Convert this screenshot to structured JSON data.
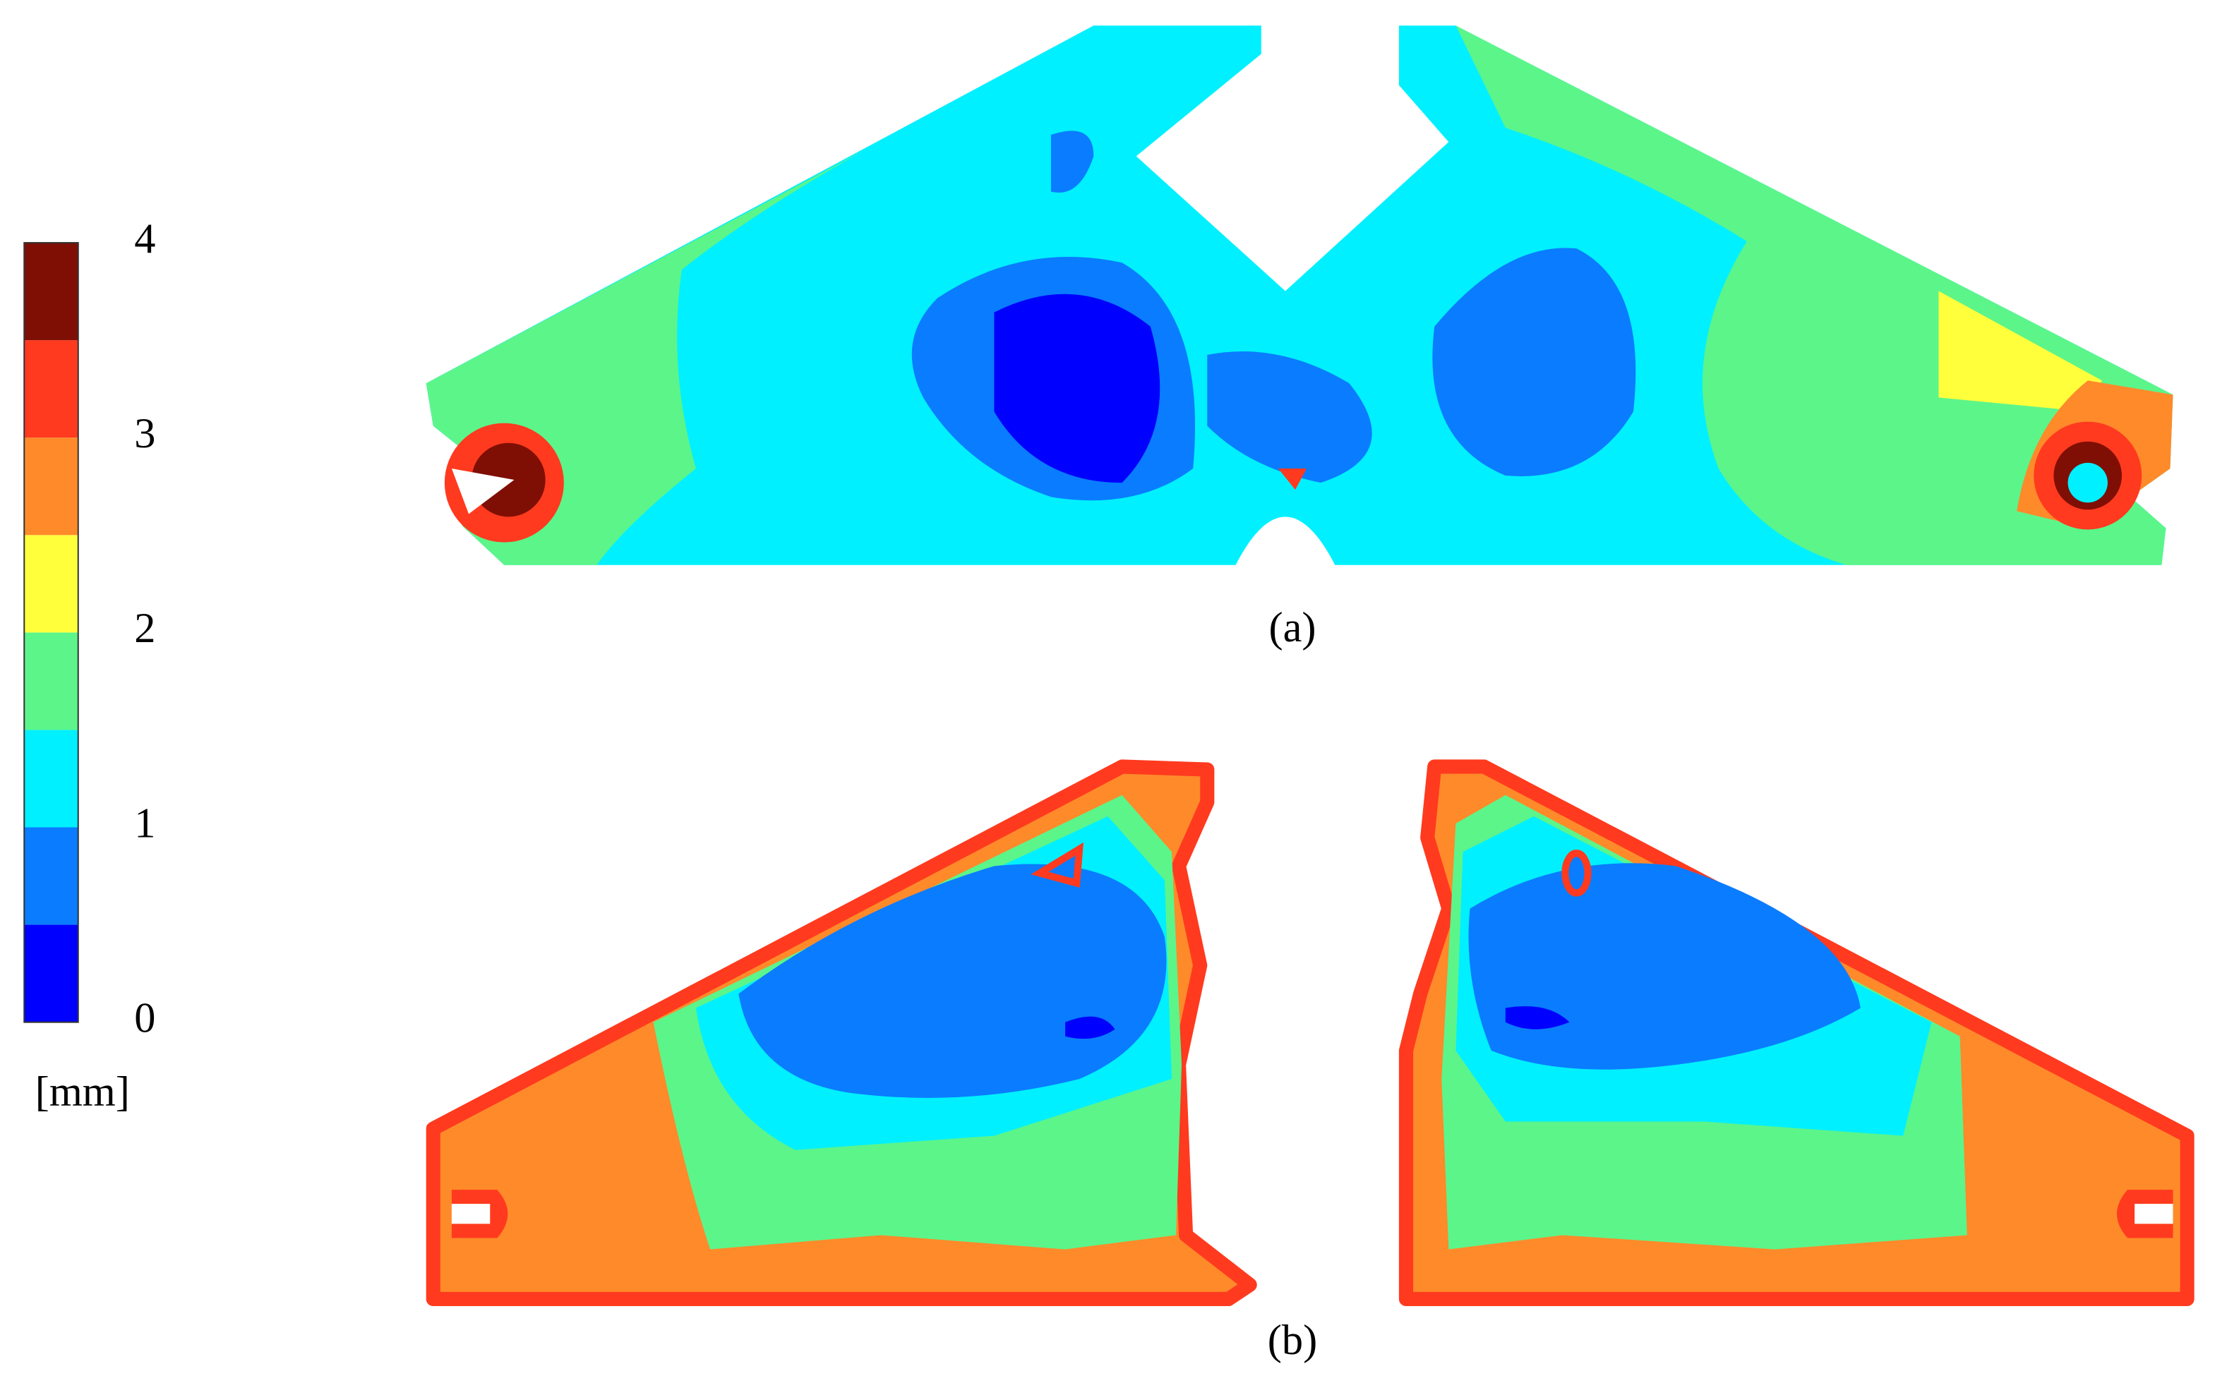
{
  "colorbar": {
    "unit": "[mm]",
    "lim": [
      0,
      4
    ],
    "ticks": [
      0,
      1,
      2,
      3,
      4
    ],
    "colors": [
      "#0000ff",
      "#0a7cff",
      "#00f0ff",
      "#5cf58a",
      "#ffff3c",
      "#ff8a2a",
      "#ff3a1f",
      "#7f0f05"
    ]
  },
  "panels": [
    {
      "caption": "(a)"
    },
    {
      "caption": "(b)"
    }
  ]
}
